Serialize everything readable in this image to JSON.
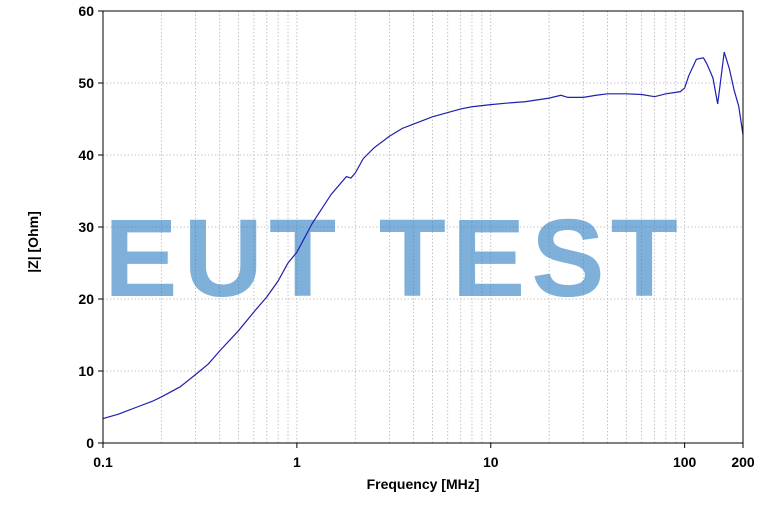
{
  "chart_data": {
    "type": "line",
    "xlabel": "Frequency [MHz]",
    "ylabel": "|Z| [Ohm]",
    "x_scale": "log",
    "xlim": [
      0.1,
      200
    ],
    "ylim": [
      0,
      60
    ],
    "grid": true,
    "x_ticks": [
      {
        "value": 0.1,
        "label": "0.1"
      },
      {
        "value": 1,
        "label": "1"
      },
      {
        "value": 10,
        "label": "10"
      },
      {
        "value": 100,
        "label": "100"
      },
      {
        "value": 200,
        "label": "200"
      }
    ],
    "y_ticks": [
      {
        "value": 0,
        "label": "0"
      },
      {
        "value": 10,
        "label": "10"
      },
      {
        "value": 20,
        "label": "20"
      },
      {
        "value": 30,
        "label": "30"
      },
      {
        "value": 40,
        "label": "40"
      },
      {
        "value": 50,
        "label": "50"
      },
      {
        "value": 60,
        "label": "60"
      }
    ],
    "watermark": "EUT TEST",
    "series": [
      {
        "color": "#1f1fb0",
        "points": [
          [
            0.1,
            3.4
          ],
          [
            0.12,
            4.0
          ],
          [
            0.15,
            5.0
          ],
          [
            0.18,
            5.8
          ],
          [
            0.2,
            6.4
          ],
          [
            0.25,
            7.8
          ],
          [
            0.3,
            9.5
          ],
          [
            0.35,
            11.0
          ],
          [
            0.4,
            12.8
          ],
          [
            0.5,
            15.6
          ],
          [
            0.6,
            18.2
          ],
          [
            0.7,
            20.3
          ],
          [
            0.8,
            22.5
          ],
          [
            0.9,
            25.0
          ],
          [
            1.0,
            26.5
          ],
          [
            1.2,
            30.5
          ],
          [
            1.5,
            34.5
          ],
          [
            1.8,
            37.0
          ],
          [
            1.9,
            36.8
          ],
          [
            2.0,
            37.5
          ],
          [
            2.2,
            39.5
          ],
          [
            2.5,
            41.0
          ],
          [
            3.0,
            42.6
          ],
          [
            3.5,
            43.7
          ],
          [
            4.0,
            44.3
          ],
          [
            5.0,
            45.3
          ],
          [
            6.0,
            45.9
          ],
          [
            7.0,
            46.4
          ],
          [
            8.0,
            46.7
          ],
          [
            10.0,
            47.0
          ],
          [
            12.0,
            47.2
          ],
          [
            15.0,
            47.4
          ],
          [
            20.0,
            47.9
          ],
          [
            23.0,
            48.3
          ],
          [
            25.0,
            48.0
          ],
          [
            30.0,
            48.0
          ],
          [
            35.0,
            48.3
          ],
          [
            40.0,
            48.5
          ],
          [
            50.0,
            48.5
          ],
          [
            60.0,
            48.4
          ],
          [
            70.0,
            48.1
          ],
          [
            80.0,
            48.5
          ],
          [
            90.0,
            48.7
          ],
          [
            95.0,
            48.8
          ],
          [
            100.0,
            49.3
          ],
          [
            105.0,
            51.0
          ],
          [
            115.0,
            53.3
          ],
          [
            125.0,
            53.5
          ],
          [
            130.0,
            52.7
          ],
          [
            140.0,
            50.7
          ],
          [
            148.0,
            47.1
          ],
          [
            152.0,
            49.5
          ],
          [
            160.0,
            54.3
          ],
          [
            170.0,
            52.0
          ],
          [
            180.0,
            49.0
          ],
          [
            190.0,
            46.8
          ],
          [
            200.0,
            42.8
          ]
        ]
      }
    ]
  }
}
